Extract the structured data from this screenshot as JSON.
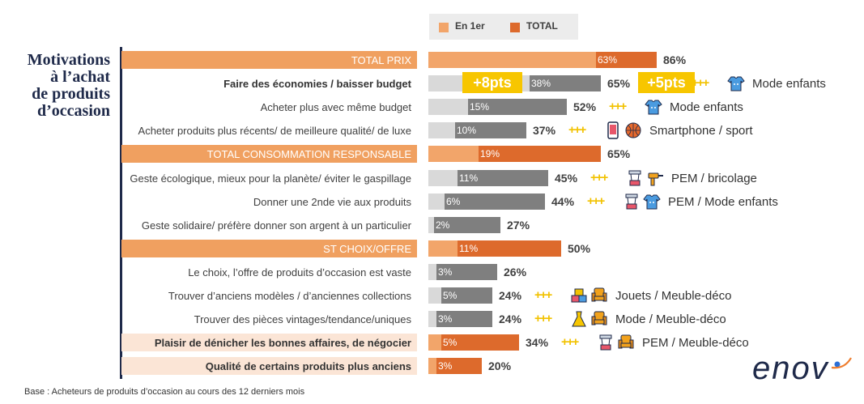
{
  "legend": {
    "first_label": "En 1er",
    "total_label": "TOTAL"
  },
  "title_lines": [
    "Motivations",
    "à l’achat",
    "de produits",
    "d’occasion"
  ],
  "base_note": "Base : Acheteurs de produits d’occasion au cours des 12 derniers mois",
  "logo_text": "enov",
  "colors": {
    "header_band": "#f0a060",
    "light_band": "#fbe5d6",
    "first_light": "#f2a56a",
    "total_dark": "#dd6a2c",
    "first_grey": "#d9d9d9",
    "total_grey": "#7f7f7f",
    "plus": "#f2c200",
    "navy": "#1f2a4a",
    "pts_box": "#f7c600"
  },
  "highlights": {
    "pts_first": "+8pts",
    "pts_total": "+5pts"
  },
  "annotation_plus": "+++",
  "chart_data": {
    "type": "bar",
    "orientation": "horizontal",
    "stacked": "overlay",
    "categories": [
      "TOTAL PRIX",
      "Faire des économies / baisser budget",
      "Acheter plus avec même budget",
      "Acheter produits plus récents/ de meilleure qualité/ de luxe",
      "TOTAL CONSOMMATION RESPONSABLE",
      "Geste écologique, mieux pour la planète/ éviter le gaspillage",
      "Donner une 2nde vie aux produits",
      "Geste solidaire/ préfère donner son argent à un particulier",
      "ST CHOIX/OFFRE",
      "Le choix, l’offre de produits d’occasion est vaste",
      "Trouver d’anciens modèles / d’anciennes collections",
      "Trouver des pièces vintages/tendance/uniques",
      "Plaisir de dénicher les bonnes affaires, de négocier",
      "Qualité de certains produits plus anciens"
    ],
    "series": [
      {
        "name": "En 1er",
        "values": [
          63,
          38,
          15,
          10,
          19,
          11,
          6,
          2,
          11,
          3,
          5,
          3,
          5,
          3
        ]
      },
      {
        "name": "TOTAL",
        "values": [
          86,
          65,
          52,
          37,
          65,
          45,
          44,
          27,
          50,
          26,
          24,
          24,
          34,
          20
        ]
      }
    ],
    "row_style": [
      "header",
      "bold",
      "normal",
      "normal",
      "header",
      "normal",
      "normal",
      "normal",
      "header",
      "normal",
      "normal",
      "normal",
      "highlight",
      "highlight"
    ],
    "annotations": [
      {
        "row": 1,
        "text": "Mode enfants",
        "icons": [
          "baby-clothes-icon"
        ]
      },
      {
        "row": 2,
        "text": "Mode enfants",
        "icons": [
          "baby-clothes-icon"
        ]
      },
      {
        "row": 3,
        "text": "Smartphone / sport",
        "icons": [
          "smartphone-icon",
          "basketball-icon"
        ]
      },
      {
        "row": 5,
        "text": "PEM / bricolage",
        "icons": [
          "kitchen-robot-icon",
          "drill-icon"
        ]
      },
      {
        "row": 6,
        "text": "PEM / Mode enfants",
        "icons": [
          "kitchen-robot-icon",
          "baby-clothes-icon"
        ]
      },
      {
        "row": 10,
        "text": "Jouets / Meuble-déco",
        "icons": [
          "toys-icon",
          "armchair-icon"
        ]
      },
      {
        "row": 11,
        "text": "Mode / Meuble-déco",
        "icons": [
          "dress-icon",
          "armchair-icon"
        ]
      },
      {
        "row": 12,
        "text": "PEM / Meuble-déco",
        "icons": [
          "kitchen-robot-icon",
          "armchair-icon"
        ]
      }
    ],
    "xlim": [
      0,
      100
    ]
  }
}
